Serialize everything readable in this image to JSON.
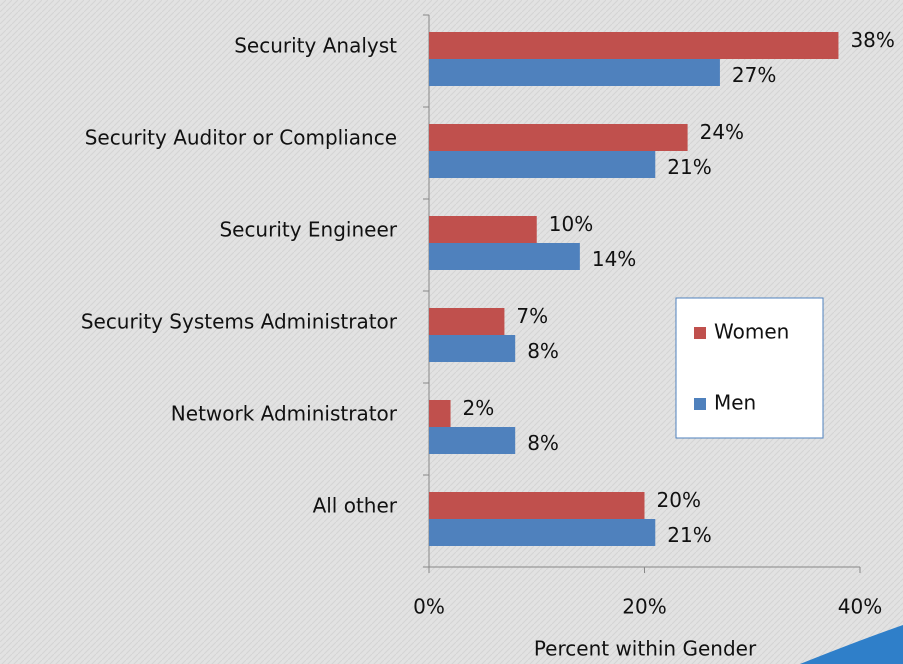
{
  "chart_data": {
    "type": "barh",
    "x_label": "Percent within Gender",
    "categories": [
      "Security Analyst",
      "Security Auditor or Compliance",
      "Security Engineer",
      "Security Systems Administrator",
      "Network Administrator",
      "All other"
    ],
    "series": [
      {
        "name": "Women",
        "color": "#c0504d",
        "values": [
          38,
          24,
          10,
          7,
          2,
          20
        ],
        "value_labels": [
          "38%",
          "24%",
          "10%",
          "7%",
          "2%",
          "20%"
        ]
      },
      {
        "name": "Men",
        "color": "#4f81bd",
        "values": [
          27,
          21,
          14,
          8,
          8,
          21
        ],
        "value_labels": [
          "27%",
          "21%",
          "14%",
          "8%",
          "8%",
          "21%"
        ]
      }
    ],
    "xlim": [
      0,
      40
    ],
    "xticks": [
      {
        "value": 0,
        "label": "0%"
      },
      {
        "value": 20,
        "label": "20%"
      },
      {
        "value": 40,
        "label": "40%"
      }
    ],
    "legend": "right"
  }
}
